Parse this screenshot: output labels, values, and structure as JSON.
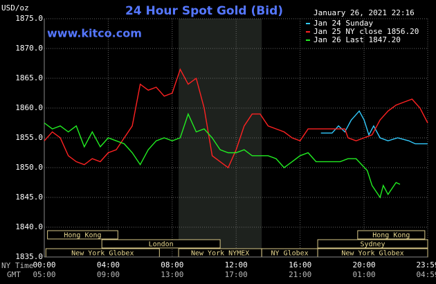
{
  "chart_data": {
    "type": "line",
    "title": "24 Hour Spot Gold (Bid)",
    "site": "www.kitco.com",
    "timestamp": "January 26, 2021 22:16",
    "y_label": "USD/oz",
    "x_label": "NY Time",
    "x2_label": "GMT",
    "xlim": [
      0,
      23.98
    ],
    "ylim": [
      1835,
      1875
    ],
    "yticks": [
      {
        "value": 1835,
        "label": "1835.0"
      },
      {
        "value": 1840,
        "label": "1840.0"
      },
      {
        "value": 1845,
        "label": "1845.0"
      },
      {
        "value": 1850,
        "label": "1850.0"
      },
      {
        "value": 1855,
        "label": "1855.0"
      },
      {
        "value": 1860,
        "label": "1860.0"
      },
      {
        "value": 1865,
        "label": "1865.0"
      },
      {
        "value": 1870,
        "label": "1870.0"
      },
      {
        "value": 1875,
        "label": "1875.0"
      }
    ],
    "xticks": [
      {
        "value": 0,
        "label": "00:00"
      },
      {
        "value": 4,
        "label": "04:00"
      },
      {
        "value": 8,
        "label": "08:00"
      },
      {
        "value": 12,
        "label": "12:00"
      },
      {
        "value": 16,
        "label": "16:00"
      },
      {
        "value": 20,
        "label": "20:00"
      },
      {
        "value": 23.98,
        "label": "23:59"
      }
    ],
    "x2tick_labels": [
      "05:00",
      "09:00",
      "13:00",
      "17:00",
      "21:00",
      "01:00",
      "04:59"
    ],
    "grid": true,
    "shaded_range": [
      8.4,
      13.6
    ],
    "sessions": [
      {
        "label": "Hong Kong",
        "start": 0.2,
        "end": 4.6
      },
      {
        "label": "Hong Kong",
        "start": 19.6,
        "end": 23.8
      },
      {
        "label": "London",
        "start": 3.6,
        "end": 11
      },
      {
        "label": "Sydney",
        "start": 17.1,
        "end": 23.98
      },
      {
        "label": "New York Globex",
        "start": 0.1,
        "end": 7.2
      },
      {
        "label": "New York NYMEX",
        "start": 8.4,
        "end": 13.6
      },
      {
        "label": "NY Globex",
        "start": 13.6,
        "end": 17.1
      },
      {
        "label": "New York Globex",
        "start": 17.1,
        "end": 23.98
      }
    ],
    "series": [
      {
        "name": "Jan 24 Sunday",
        "color": "#33ccff",
        "x": [
          17.3,
          18,
          18.4,
          18.8,
          19.2,
          19.7,
          20,
          20.3,
          20.6,
          21,
          21.5,
          22.1,
          22.8,
          23.2,
          23.98
        ],
        "values": [
          1855.8,
          1855.8,
          1857,
          1856,
          1858,
          1859.5,
          1858,
          1855.5,
          1857,
          1855,
          1854.5,
          1855,
          1854.5,
          1854,
          1854
        ]
      },
      {
        "name": "Jan 25 NY close 1856.20",
        "color": "#ff2222",
        "x": [
          0,
          0.5,
          1,
          1.5,
          2,
          2.5,
          3,
          3.5,
          4,
          4.5,
          5,
          5.5,
          6,
          6.5,
          7,
          7.5,
          8,
          8.5,
          9,
          9.5,
          10,
          10.5,
          11,
          11.5,
          12,
          12.5,
          13,
          13.5,
          14,
          14.5,
          15,
          15.5,
          16,
          16.5,
          17,
          17.5,
          18,
          18.8,
          19,
          19.5,
          20,
          20.5,
          21,
          21.5,
          22,
          22.5,
          23,
          23.5,
          23.98
        ],
        "values": [
          1854.5,
          1856,
          1855,
          1852,
          1851,
          1850.5,
          1851.5,
          1851,
          1852.5,
          1853,
          1855,
          1857,
          1864,
          1863,
          1863.5,
          1862,
          1862.5,
          1866.5,
          1864,
          1865,
          1860,
          1852,
          1851,
          1850,
          1853,
          1857,
          1859,
          1859,
          1857,
          1856.5,
          1856,
          1855,
          1854.5,
          1856.5,
          1856.5,
          1856.5,
          1856.5,
          1856.5,
          1855,
          1854.5,
          1855,
          1855.5,
          1858,
          1859.5,
          1860.5,
          1861,
          1861.5,
          1860,
          1857.5
        ]
      },
      {
        "name": "Jan 26 Last 1847.20",
        "color": "#22ee22",
        "x": [
          0,
          0.5,
          1,
          1.5,
          2,
          2.5,
          3,
          3.5,
          4,
          4.5,
          5,
          5.5,
          6,
          6.5,
          7,
          7.5,
          8,
          8.5,
          9,
          9.5,
          10,
          10.5,
          11,
          11.5,
          12,
          12.5,
          13,
          13.5,
          14,
          14.5,
          15,
          15.5,
          16,
          16.5,
          17,
          17.5,
          18,
          18.5,
          19,
          19.5,
          20.2,
          20.5,
          21,
          21.2,
          21.5,
          22,
          22.25
        ],
        "values": [
          1857.5,
          1856.5,
          1857,
          1856,
          1857,
          1853.5,
          1856,
          1853.5,
          1855,
          1854.5,
          1854,
          1852.5,
          1850.5,
          1853,
          1854.5,
          1855,
          1854.5,
          1855,
          1859,
          1856,
          1856.5,
          1855,
          1853,
          1852.5,
          1852.5,
          1853,
          1852,
          1852,
          1852,
          1851.5,
          1850,
          1851,
          1852,
          1852.5,
          1851,
          1851,
          1851,
          1851,
          1851.5,
          1851.5,
          1849.5,
          1847,
          1845,
          1847,
          1845.5,
          1847.5,
          1847.2
        ]
      }
    ]
  }
}
